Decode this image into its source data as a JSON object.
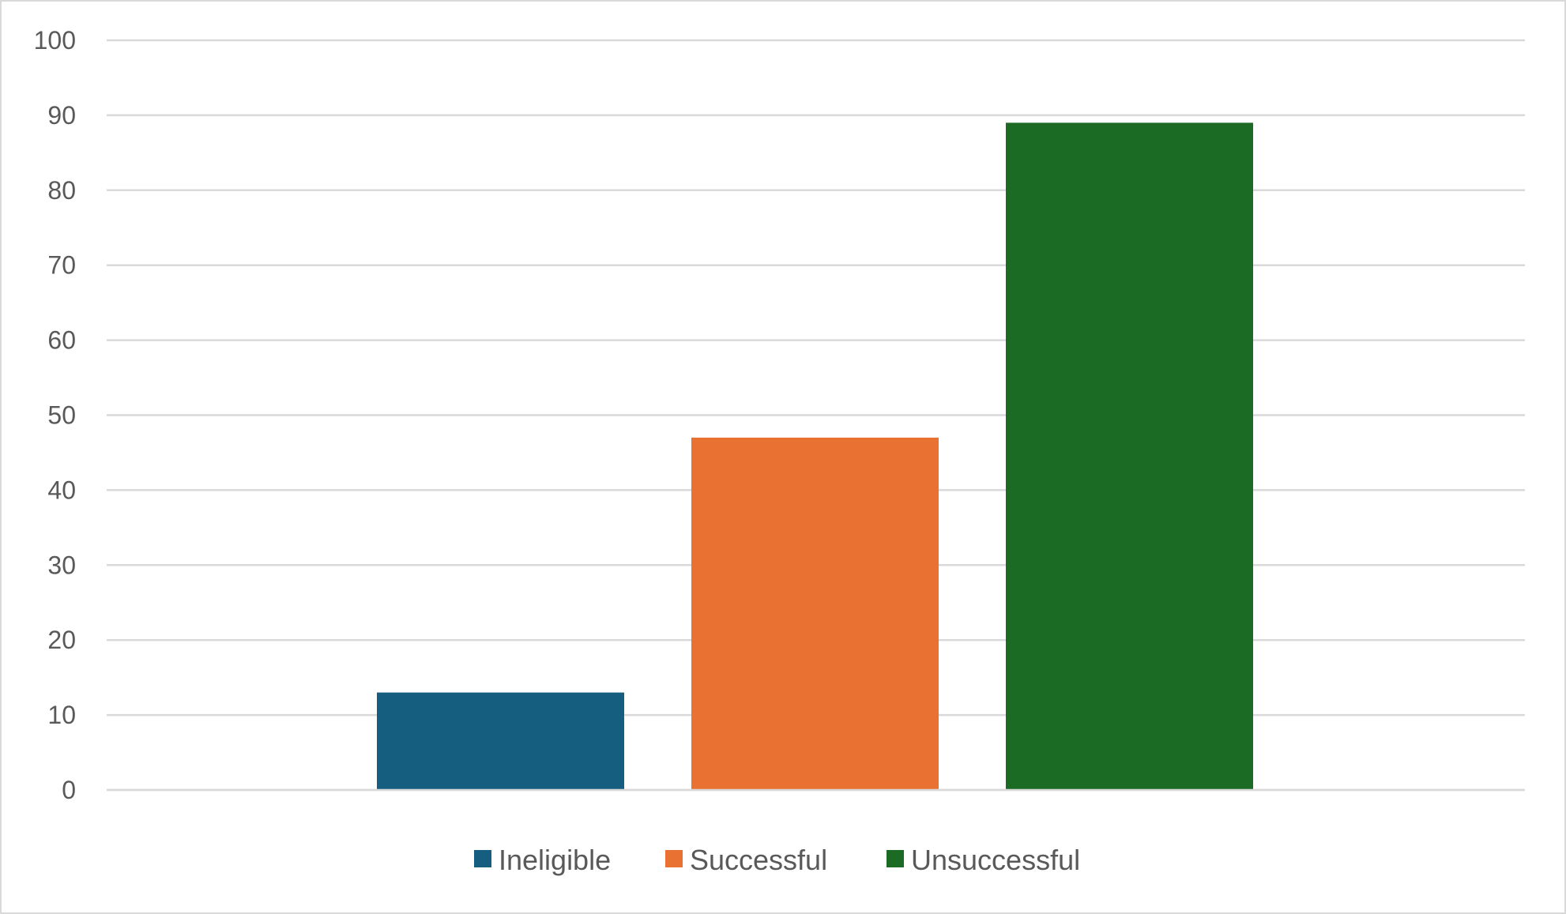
{
  "chart_data": {
    "type": "bar",
    "title": "",
    "xlabel": "",
    "ylabel": "",
    "ylim": [
      0,
      100
    ],
    "yticks": [
      0,
      10,
      20,
      30,
      40,
      50,
      60,
      70,
      80,
      90,
      100
    ],
    "categories": [
      ""
    ],
    "grid": true,
    "legend_position": "bottom",
    "series": [
      {
        "name": "Ineligible",
        "values": [
          13
        ],
        "color": "#165e7f"
      },
      {
        "name": "Successful",
        "values": [
          47
        ],
        "color": "#e97132"
      },
      {
        "name": "Unsuccessful",
        "values": [
          89
        ],
        "color": "#1b6b25"
      }
    ]
  }
}
